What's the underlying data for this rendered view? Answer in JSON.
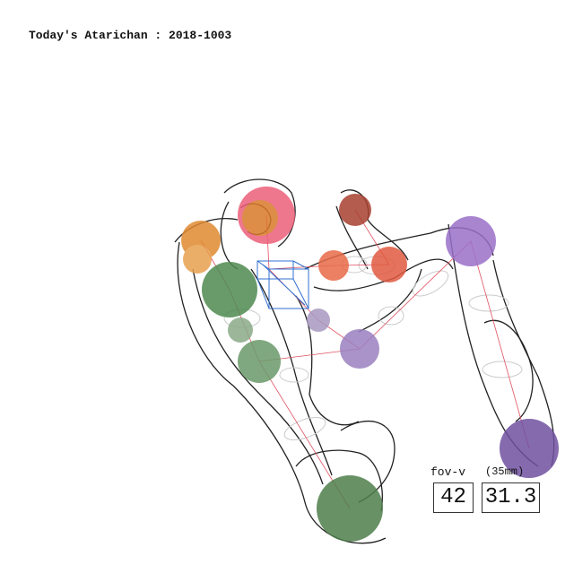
{
  "header": {
    "title": "Today's Atarichan : 2018-1003"
  },
  "camera": {
    "fov_label": "fov-v",
    "lens_label": "(35mm)",
    "fov_value": 42,
    "lens_value": 31.3
  }
}
